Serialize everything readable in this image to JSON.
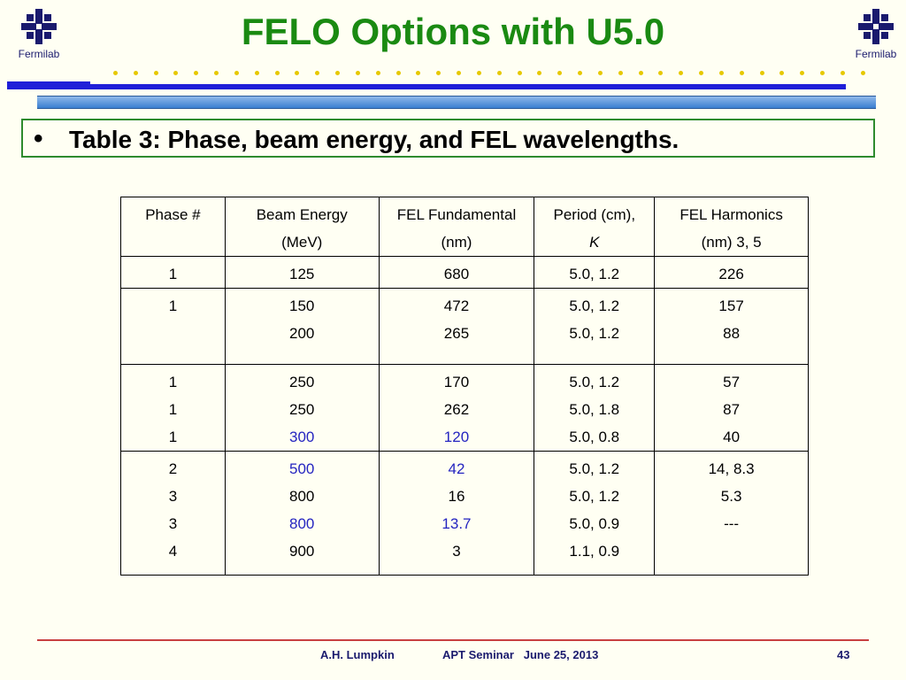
{
  "header": {
    "title": "FELO Options with U5.0",
    "logo_text": "Fermilab",
    "logo_icon": "fermilab-logo-icon"
  },
  "bullet": {
    "symbol": "•",
    "text": "Table 3: Phase, beam energy, and FEL wavelengths."
  },
  "table": {
    "headers": [
      [
        "Phase #",
        ""
      ],
      [
        "Beam Energy",
        "(MeV)"
      ],
      [
        "FEL Fundamental",
        "(nm)"
      ],
      [
        "Period (cm),",
        "K"
      ],
      [
        "FEL Harmonics",
        "(nm) 3, 5"
      ]
    ],
    "groups": [
      {
        "phase": [
          "1"
        ],
        "energy": [
          "125"
        ],
        "fundamental": [
          "680"
        ],
        "period": [
          "5.0, 1.2"
        ],
        "harmonics": [
          "226"
        ]
      },
      {
        "phase": [
          "1"
        ],
        "energy": [
          "150",
          "200"
        ],
        "fundamental": [
          "472",
          "265"
        ],
        "period": [
          "5.0, 1.2",
          "5.0, 1.2"
        ],
        "harmonics": [
          "157",
          "88"
        ]
      },
      {
        "phase": [
          "1",
          "1",
          "1"
        ],
        "energy": [
          "250",
          "250",
          "300"
        ],
        "fundamental": [
          "170",
          "262",
          "120"
        ],
        "period": [
          "5.0, 1.2",
          "5.0, 1.8",
          "5.0, 0.8"
        ],
        "harmonics": [
          "57",
          "87",
          "40"
        ]
      },
      {
        "phase": [
          "2",
          "3",
          "3",
          "4"
        ],
        "energy": [
          "500",
          "800",
          "800",
          "900"
        ],
        "fundamental": [
          "42",
          "16",
          "13.7",
          "3"
        ],
        "period": [
          "5.0, 1.2",
          "5.0, 1.2",
          "5.0, 0.9",
          "1.1, 0.9"
        ],
        "harmonics": [
          "14, 8.3",
          "5.3",
          "---",
          ""
        ]
      }
    ]
  },
  "footer": {
    "author": "A.H. Lumpkin",
    "seminar": "APT Seminar   June 25, 2013",
    "page": "43"
  },
  "colors": {
    "title": "#1a8a12",
    "highlight": "#2525c0",
    "navy_bar": "#1f1fd8",
    "bullet_border": "#2e8b2e",
    "footer_line": "#c84040",
    "background": "#fffff3"
  }
}
